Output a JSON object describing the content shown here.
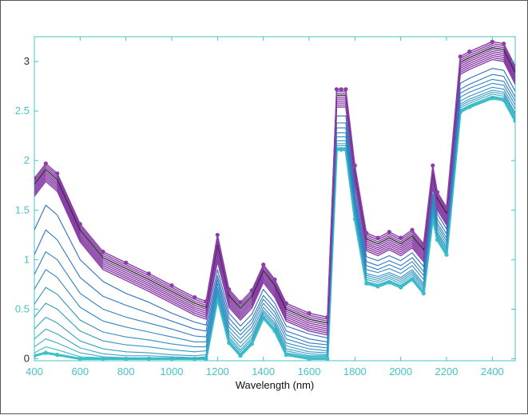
{
  "chart_data": {
    "type": "line",
    "title": "",
    "xlabel": "Wavelength (nm)",
    "ylabel": "",
    "xlim": [
      400,
      2500
    ],
    "ylim": [
      -0.02,
      3.25
    ],
    "grid": false,
    "legend": "none",
    "x_ticks": [
      "400",
      "600",
      "800",
      "1000",
      "1200",
      "1400",
      "1600",
      "1800",
      "2000",
      "2200",
      "2400"
    ],
    "y_ticks": [
      "0",
      "0.5",
      "1",
      "1.5",
      "2",
      "2.5",
      "3"
    ],
    "x_tick_values": [
      400,
      600,
      800,
      1000,
      1200,
      1400,
      1600,
      1800,
      2000,
      2200,
      2400
    ],
    "y_tick_values": [
      0,
      0.5,
      1,
      1.5,
      2,
      2.5,
      3
    ],
    "colors": {
      "axis": "#44c4c4",
      "purple": "#8a3fa8",
      "blue": "#2e6fbf",
      "teal": "#3cc0c8",
      "dark": "#2a2a2a"
    },
    "x": [
      400,
      450,
      500,
      600,
      700,
      800,
      900,
      1000,
      1100,
      1150,
      1200,
      1250,
      1300,
      1350,
      1400,
      1450,
      1500,
      1600,
      1680,
      1720,
      1740,
      1760,
      1800,
      1850,
      1900,
      1950,
      2000,
      2050,
      2100,
      2140,
      2160,
      2200,
      2260,
      2300,
      2400,
      2450,
      2500
    ],
    "series": [
      {
        "values": [
          1.82,
          1.97,
          1.87,
          1.36,
          1.08,
          0.97,
          0.86,
          0.74,
          0.62,
          0.58,
          1.25,
          0.7,
          0.57,
          0.69,
          0.95,
          0.8,
          0.56,
          0.46,
          0.42,
          2.72,
          2.72,
          2.72,
          1.95,
          1.27,
          1.22,
          1.28,
          1.22,
          1.3,
          1.16,
          1.95,
          1.68,
          1.53,
          3.05,
          3.1,
          3.2,
          3.18,
          2.95
        ]
      },
      {
        "values": [
          1.8,
          1.95,
          1.85,
          1.34,
          1.06,
          0.95,
          0.84,
          0.72,
          0.6,
          0.56,
          1.22,
          0.68,
          0.55,
          0.67,
          0.93,
          0.78,
          0.54,
          0.44,
          0.4,
          2.7,
          2.7,
          2.7,
          1.93,
          1.25,
          1.2,
          1.26,
          1.2,
          1.28,
          1.14,
          1.93,
          1.66,
          1.51,
          3.03,
          3.08,
          3.18,
          3.16,
          2.93
        ]
      },
      {
        "values": [
          1.78,
          1.93,
          1.83,
          1.32,
          1.04,
          0.93,
          0.82,
          0.7,
          0.58,
          0.54,
          1.19,
          0.66,
          0.53,
          0.65,
          0.91,
          0.76,
          0.52,
          0.42,
          0.38,
          2.68,
          2.68,
          2.68,
          1.91,
          1.23,
          1.18,
          1.24,
          1.18,
          1.26,
          1.12,
          1.91,
          1.64,
          1.49,
          3.01,
          3.06,
          3.16,
          3.14,
          2.91
        ]
      },
      {
        "values": [
          1.76,
          1.91,
          1.81,
          1.3,
          1.02,
          0.91,
          0.8,
          0.68,
          0.56,
          0.52,
          1.16,
          0.64,
          0.51,
          0.63,
          0.89,
          0.74,
          0.5,
          0.4,
          0.36,
          2.66,
          2.66,
          2.66,
          1.89,
          1.21,
          1.16,
          1.22,
          1.16,
          1.24,
          1.1,
          1.89,
          1.62,
          1.47,
          2.99,
          3.04,
          3.14,
          3.12,
          2.89
        ]
      },
      {
        "values": [
          1.74,
          1.89,
          1.79,
          1.28,
          1.0,
          0.89,
          0.78,
          0.66,
          0.54,
          0.5,
          1.13,
          0.62,
          0.49,
          0.61,
          0.87,
          0.72,
          0.48,
          0.38,
          0.34,
          2.64,
          2.64,
          2.64,
          1.87,
          1.19,
          1.14,
          1.2,
          1.14,
          1.22,
          1.08,
          1.87,
          1.6,
          1.45,
          2.97,
          3.02,
          3.12,
          3.1,
          2.87
        ]
      },
      {
        "values": [
          1.72,
          1.87,
          1.77,
          1.26,
          0.98,
          0.87,
          0.76,
          0.64,
          0.52,
          0.48,
          1.1,
          0.6,
          0.47,
          0.59,
          0.85,
          0.7,
          0.46,
          0.36,
          0.32,
          2.62,
          2.62,
          2.62,
          1.85,
          1.17,
          1.12,
          1.18,
          1.12,
          1.2,
          1.06,
          1.85,
          1.58,
          1.43,
          2.95,
          3.0,
          3.1,
          3.08,
          2.85
        ]
      },
      {
        "values": [
          1.7,
          1.85,
          1.75,
          1.24,
          0.96,
          0.85,
          0.74,
          0.62,
          0.5,
          0.46,
          1.07,
          0.58,
          0.45,
          0.57,
          0.83,
          0.68,
          0.44,
          0.34,
          0.3,
          2.6,
          2.6,
          2.6,
          1.83,
          1.15,
          1.1,
          1.16,
          1.1,
          1.18,
          1.04,
          1.83,
          1.56,
          1.41,
          2.93,
          2.98,
          3.08,
          3.06,
          2.83
        ]
      },
      {
        "values": [
          1.68,
          1.83,
          1.73,
          1.22,
          0.94,
          0.83,
          0.72,
          0.6,
          0.48,
          0.44,
          1.04,
          0.56,
          0.43,
          0.55,
          0.81,
          0.66,
          0.42,
          0.32,
          0.28,
          2.58,
          2.58,
          2.58,
          1.81,
          1.13,
          1.08,
          1.14,
          1.08,
          1.16,
          1.02,
          1.81,
          1.54,
          1.39,
          2.91,
          2.96,
          3.06,
          3.04,
          2.81
        ]
      },
      {
        "values": [
          1.66,
          1.81,
          1.71,
          1.2,
          0.92,
          0.81,
          0.7,
          0.58,
          0.46,
          0.42,
          1.01,
          0.54,
          0.41,
          0.53,
          0.79,
          0.64,
          0.4,
          0.3,
          0.26,
          2.56,
          2.56,
          2.56,
          1.79,
          1.11,
          1.06,
          1.12,
          1.06,
          1.14,
          1.0,
          1.79,
          1.52,
          1.37,
          2.89,
          2.94,
          3.04,
          3.02,
          2.79
        ]
      },
      {
        "values": [
          1.64,
          1.79,
          1.69,
          1.18,
          0.9,
          0.79,
          0.68,
          0.56,
          0.44,
          0.4,
          0.98,
          0.52,
          0.39,
          0.51,
          0.77,
          0.62,
          0.38,
          0.28,
          0.24,
          2.54,
          2.54,
          2.54,
          1.77,
          1.09,
          1.04,
          1.1,
          1.04,
          1.12,
          0.98,
          1.77,
          1.5,
          1.35,
          2.87,
          2.92,
          3.02,
          3.0,
          2.77
        ]
      },
      {
        "values": [
          1.3,
          1.55,
          1.45,
          1.0,
          0.78,
          0.66,
          0.57,
          0.46,
          0.37,
          0.34,
          0.9,
          0.46,
          0.33,
          0.45,
          0.7,
          0.56,
          0.33,
          0.25,
          0.21,
          2.45,
          2.45,
          2.45,
          1.7,
          1.03,
          0.99,
          1.04,
          0.99,
          1.07,
          0.93,
          1.72,
          1.46,
          1.31,
          2.78,
          2.83,
          2.93,
          2.91,
          2.7
        ]
      },
      {
        "values": [
          1.05,
          1.3,
          1.2,
          0.82,
          0.63,
          0.54,
          0.46,
          0.38,
          0.3,
          0.28,
          0.84,
          0.41,
          0.28,
          0.4,
          0.64,
          0.51,
          0.28,
          0.2,
          0.17,
          2.38,
          2.38,
          2.38,
          1.64,
          0.98,
          0.94,
          0.99,
          0.94,
          1.02,
          0.88,
          1.66,
          1.41,
          1.26,
          2.72,
          2.77,
          2.87,
          2.85,
          2.64
        ]
      },
      {
        "values": [
          0.85,
          1.08,
          1.0,
          0.66,
          0.5,
          0.42,
          0.36,
          0.3,
          0.23,
          0.22,
          0.8,
          0.36,
          0.24,
          0.36,
          0.6,
          0.47,
          0.24,
          0.16,
          0.14,
          2.33,
          2.33,
          2.33,
          1.6,
          0.94,
          0.9,
          0.95,
          0.9,
          0.98,
          0.84,
          1.62,
          1.37,
          1.22,
          2.68,
          2.73,
          2.82,
          2.8,
          2.6
        ]
      },
      {
        "values": [
          0.7,
          0.9,
          0.82,
          0.52,
          0.38,
          0.32,
          0.27,
          0.22,
          0.17,
          0.17,
          0.76,
          0.32,
          0.2,
          0.32,
          0.56,
          0.43,
          0.2,
          0.13,
          0.11,
          2.28,
          2.28,
          2.28,
          1.56,
          0.9,
          0.87,
          0.91,
          0.86,
          0.94,
          0.8,
          1.58,
          1.34,
          1.19,
          2.64,
          2.69,
          2.78,
          2.76,
          2.56
        ]
      },
      {
        "values": [
          0.55,
          0.72,
          0.65,
          0.39,
          0.27,
          0.22,
          0.19,
          0.15,
          0.12,
          0.12,
          0.72,
          0.28,
          0.16,
          0.28,
          0.52,
          0.39,
          0.16,
          0.1,
          0.08,
          2.24,
          2.24,
          2.24,
          1.52,
          0.86,
          0.83,
          0.87,
          0.82,
          0.9,
          0.76,
          1.54,
          1.31,
          1.16,
          2.6,
          2.65,
          2.74,
          2.72,
          2.52
        ]
      },
      {
        "values": [
          0.42,
          0.56,
          0.5,
          0.28,
          0.18,
          0.14,
          0.12,
          0.09,
          0.07,
          0.08,
          0.69,
          0.25,
          0.12,
          0.24,
          0.49,
          0.36,
          0.13,
          0.07,
          0.06,
          2.2,
          2.2,
          2.2,
          1.49,
          0.84,
          0.81,
          0.85,
          0.8,
          0.88,
          0.74,
          1.51,
          1.28,
          1.13,
          2.57,
          2.62,
          2.71,
          2.69,
          2.48
        ]
      },
      {
        "values": [
          0.3,
          0.42,
          0.36,
          0.18,
          0.1,
          0.07,
          0.06,
          0.04,
          0.03,
          0.04,
          0.67,
          0.22,
          0.09,
          0.21,
          0.47,
          0.34,
          0.1,
          0.05,
          0.04,
          2.17,
          2.17,
          2.17,
          1.47,
          0.82,
          0.79,
          0.83,
          0.78,
          0.86,
          0.72,
          1.49,
          1.26,
          1.11,
          2.55,
          2.6,
          2.69,
          2.67,
          2.46
        ]
      },
      {
        "values": [
          0.2,
          0.3,
          0.25,
          0.11,
          0.05,
          0.03,
          0.03,
          0.02,
          0.01,
          0.02,
          0.65,
          0.2,
          0.07,
          0.19,
          0.45,
          0.32,
          0.08,
          0.03,
          0.03,
          2.15,
          2.15,
          2.15,
          1.45,
          0.8,
          0.77,
          0.81,
          0.76,
          0.84,
          0.7,
          1.47,
          1.24,
          1.09,
          2.53,
          2.58,
          2.67,
          2.65,
          2.44
        ]
      },
      {
        "values": [
          0.12,
          0.2,
          0.16,
          0.06,
          0.02,
          0.01,
          0.01,
          0.01,
          0.0,
          0.01,
          0.63,
          0.18,
          0.05,
          0.17,
          0.43,
          0.3,
          0.06,
          0.02,
          0.02,
          2.13,
          2.13,
          2.13,
          1.43,
          0.78,
          0.75,
          0.79,
          0.74,
          0.82,
          0.68,
          1.45,
          1.22,
          1.07,
          2.51,
          2.56,
          2.65,
          2.63,
          2.42
        ]
      },
      {
        "values": [
          0.06,
          0.12,
          0.09,
          0.02,
          0.01,
          0.0,
          0.0,
          0.0,
          0.0,
          0.0,
          0.62,
          0.17,
          0.04,
          0.16,
          0.42,
          0.29,
          0.05,
          0.01,
          0.01,
          2.12,
          2.12,
          2.12,
          1.42,
          0.77,
          0.74,
          0.78,
          0.73,
          0.81,
          0.67,
          1.44,
          1.21,
          1.06,
          2.5,
          2.55,
          2.64,
          2.62,
          2.41
        ]
      },
      {
        "values": [
          0.03,
          0.06,
          0.04,
          0.0,
          0.0,
          0.0,
          0.0,
          0.0,
          0.0,
          0.0,
          0.61,
          0.16,
          0.03,
          0.15,
          0.41,
          0.28,
          0.04,
          0.0,
          0.0,
          2.11,
          2.11,
          2.11,
          1.41,
          0.76,
          0.73,
          0.77,
          0.72,
          0.8,
          0.66,
          1.43,
          1.2,
          1.05,
          2.49,
          2.54,
          2.63,
          2.61,
          2.4
        ]
      }
    ]
  }
}
